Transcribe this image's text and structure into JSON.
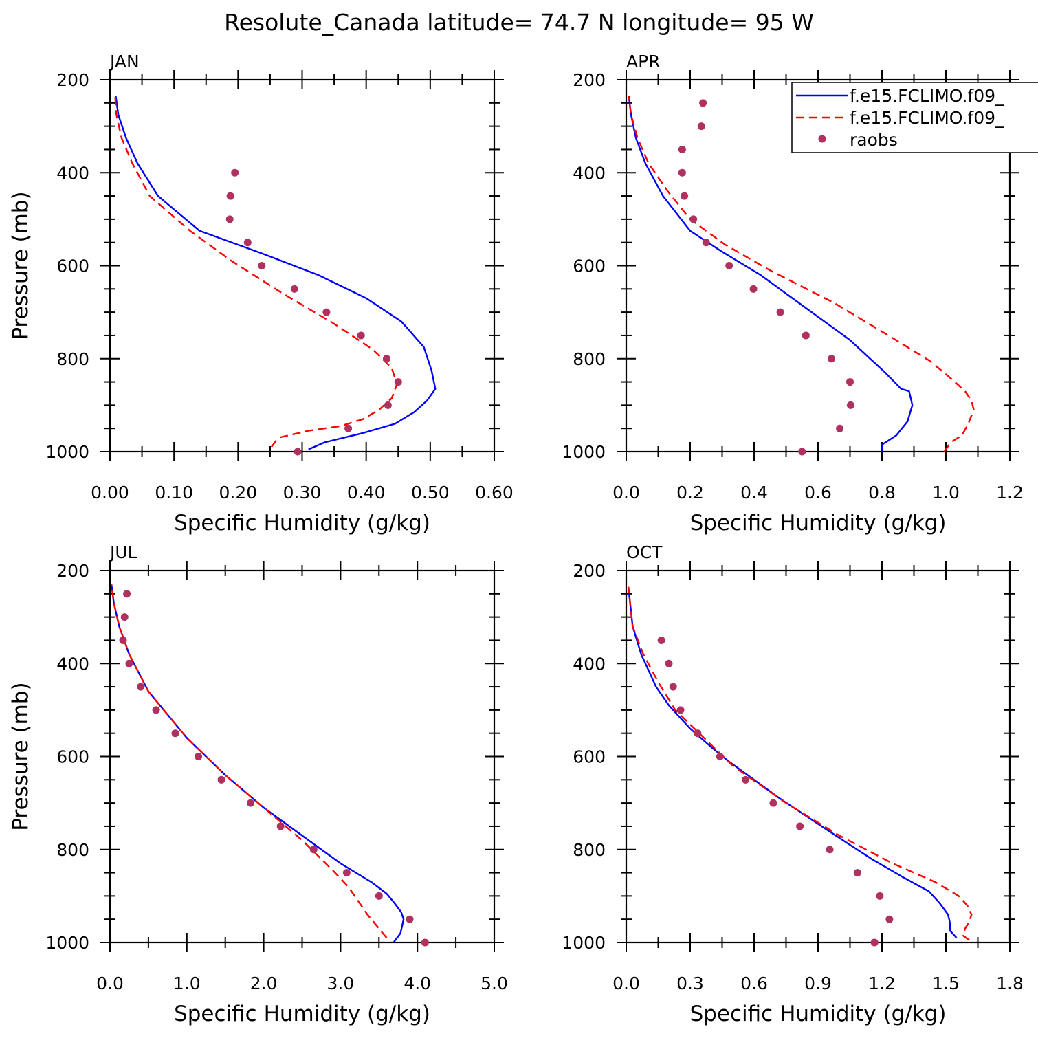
{
  "title": "Resolute_Canada  latitude= 74.7 N longitude= 95 W",
  "colors": {
    "model1": "#0000ff",
    "model2": "#ff0000",
    "raobs": "#b03060"
  },
  "legend": {
    "position": "top-right of APR panel",
    "entries": [
      {
        "label": "f.e15.FCLIMO.f09_",
        "style": "solid",
        "color": "#0000ff"
      },
      {
        "label": "f.e15.FCLIMO.f09_",
        "style": "dashed",
        "color": "#ff0000"
      },
      {
        "label": "raobs",
        "style": "marker",
        "color": "#b03060"
      }
    ]
  },
  "chart_data": [
    {
      "type": "line",
      "panel": "JAN",
      "title": "JAN",
      "xlabel": "Specific Humidity (g/kg)",
      "ylabel": "Pressure (mb)",
      "xlim": [
        0,
        0.6
      ],
      "ylim": [
        1000,
        200
      ],
      "xticks": [
        "0.00",
        "0.10",
        "0.20",
        "0.30",
        "0.40",
        "0.50",
        "0.60"
      ],
      "yticks": [
        "200",
        "400",
        "600",
        "800",
        "1000"
      ],
      "series": [
        {
          "name": "f.e15.FCLIMO.f09_ (solid)",
          "color": "#0000ff",
          "dash": "",
          "x": [
            0.31,
            0.335,
            0.395,
            0.445,
            0.475,
            0.495,
            0.508,
            0.502,
            0.49,
            0.455,
            0.4,
            0.325,
            0.24,
            0.14,
            0.075,
            0.043,
            0.025,
            0.013,
            0.009
          ],
          "y": [
            995,
            980,
            960,
            940,
            915,
            890,
            865,
            825,
            775,
            720,
            670,
            620,
            575,
            525,
            450,
            380,
            325,
            275,
            235
          ]
        },
        {
          "name": "f.e15.FCLIMO.f09_ (dashed)",
          "color": "#ff0000",
          "dash": "12,7",
          "x": [
            0.252,
            0.263,
            0.31,
            0.36,
            0.395,
            0.42,
            0.44,
            0.448,
            0.44,
            0.41,
            0.35,
            0.27,
            0.19,
            0.125,
            0.062,
            0.035,
            0.018,
            0.01,
            0.008
          ],
          "y": [
            990,
            970,
            955,
            945,
            930,
            910,
            885,
            855,
            820,
            780,
            725,
            660,
            590,
            525,
            450,
            380,
            325,
            275,
            235
          ]
        },
        {
          "name": "raobs",
          "color": "#b03060",
          "marker": true,
          "x": [
            0.293,
            0.372,
            0.434,
            0.45,
            0.432,
            0.392,
            0.338,
            0.288,
            0.237,
            0.215,
            0.187,
            0.188,
            0.195
          ],
          "y": [
            1000,
            950,
            900,
            850,
            800,
            750,
            700,
            650,
            600,
            550,
            500,
            450,
            400
          ]
        }
      ]
    },
    {
      "type": "line",
      "panel": "APR",
      "title": "APR",
      "xlabel": "Specific Humidity (g/kg)",
      "ylabel": "Pressure (mb)",
      "xlim": [
        0,
        1.2
      ],
      "ylim": [
        1000,
        200
      ],
      "xticks": [
        "0.0",
        "0.2",
        "0.4",
        "0.6",
        "0.8",
        "1.0",
        "1.2"
      ],
      "yticks": [
        "200",
        "400",
        "600",
        "800",
        "1000"
      ],
      "series": [
        {
          "name": "f.e15.FCLIMO.f09_ (solid)",
          "color": "#0000ff",
          "dash": "",
          "x": [
            0.802,
            0.8,
            0.845,
            0.88,
            0.895,
            0.885,
            0.86,
            0.81,
            0.7,
            0.56,
            0.42,
            0.3,
            0.2,
            0.115,
            0.06,
            0.03,
            0.015,
            0.008
          ],
          "y": [
            1000,
            985,
            965,
            935,
            900,
            870,
            865,
            830,
            760,
            690,
            620,
            570,
            525,
            450,
            380,
            325,
            275,
            235
          ]
        },
        {
          "name": "f.e15.FCLIMO.f09_ (dashed)",
          "color": "#ff0000",
          "dash": "12,7",
          "x": [
            0.995,
            1.015,
            1.05,
            1.07,
            1.087,
            1.08,
            1.06,
            1.02,
            0.95,
            0.82,
            0.65,
            0.45,
            0.31,
            0.2,
            0.13,
            0.07,
            0.035,
            0.015,
            0.007
          ],
          "y": [
            1000,
            980,
            965,
            940,
            910,
            890,
            870,
            845,
            805,
            750,
            680,
            610,
            555,
            500,
            440,
            380,
            325,
            275,
            235
          ]
        },
        {
          "name": "raobs",
          "color": "#b03060",
          "marker": true,
          "x": [
            0.55,
            0.668,
            0.702,
            0.7,
            0.642,
            0.562,
            0.482,
            0.398,
            0.322,
            0.25,
            0.21,
            0.182,
            0.175,
            0.175,
            0.235,
            0.24
          ],
          "y": [
            1000,
            950,
            900,
            850,
            800,
            750,
            700,
            650,
            600,
            550,
            500,
            450,
            400,
            350,
            300,
            250
          ]
        }
      ]
    },
    {
      "type": "line",
      "panel": "JUL",
      "title": "JUL",
      "xlabel": "Specific Humidity (g/kg)",
      "ylabel": "Pressure (mb)",
      "xlim": [
        0,
        5.0
      ],
      "ylim": [
        1000,
        200
      ],
      "xticks": [
        "0.0",
        "1.0",
        "2.0",
        "3.0",
        "4.0",
        "5.0"
      ],
      "yticks": [
        "200",
        "400",
        "600",
        "800",
        "1000"
      ],
      "series": [
        {
          "name": "f.e15.FCLIMO.f09_ (solid)",
          "color": "#0000ff",
          "dash": "",
          "x": [
            3.69,
            3.78,
            3.82,
            3.79,
            3.7,
            3.6,
            3.4,
            3.0,
            2.5,
            2.0,
            1.5,
            1.0,
            0.5,
            0.25,
            0.12,
            0.05,
            0.02
          ],
          "y": [
            1000,
            980,
            950,
            935,
            915,
            895,
            870,
            830,
            770,
            710,
            640,
            560,
            460,
            380,
            320,
            270,
            230
          ]
        },
        {
          "name": "f.e15.FCLIMO.f09_ (dashed)",
          "color": "#ff0000",
          "dash": "12,7",
          "x": [
            3.6,
            3.35,
            3.1,
            2.9,
            2.5,
            2.0,
            1.5,
            1.0,
            0.5,
            0.25,
            0.12,
            0.05,
            0.02
          ],
          "y": [
            990,
            940,
            880,
            845,
            780,
            710,
            640,
            560,
            460,
            380,
            320,
            270,
            230
          ]
        },
        {
          "name": "raobs",
          "color": "#b03060",
          "marker": true,
          "x": [
            4.1,
            3.9,
            3.5,
            3.08,
            2.65,
            2.22,
            1.83,
            1.45,
            1.15,
            0.85,
            0.6,
            0.4,
            0.25,
            0.17,
            0.19,
            0.22
          ],
          "y": [
            1000,
            950,
            900,
            850,
            800,
            750,
            700,
            650,
            600,
            550,
            500,
            450,
            400,
            350,
            300,
            250
          ]
        }
      ]
    },
    {
      "type": "line",
      "panel": "OCT",
      "title": "OCT",
      "xlabel": "Specific Humidity (g/kg)",
      "ylabel": "Pressure (mb)",
      "xlim": [
        0,
        1.8
      ],
      "ylim": [
        1000,
        200
      ],
      "xticks": [
        "0.0",
        "0.3",
        "0.6",
        "0.9",
        "1.2",
        "1.5",
        "1.8"
      ],
      "yticks": [
        "200",
        "400",
        "600",
        "800",
        "1000"
      ],
      "series": [
        {
          "name": "f.e15.FCLIMO.f09_ (solid)",
          "color": "#0000ff",
          "dash": "",
          "x": [
            1.55,
            1.52,
            1.52,
            1.51,
            1.47,
            1.42,
            1.3,
            1.15,
            0.95,
            0.72,
            0.48,
            0.4,
            0.3,
            0.2,
            0.14,
            0.07,
            0.03,
            0.01
          ],
          "y": [
            990,
            975,
            960,
            940,
            915,
            890,
            860,
            820,
            760,
            690,
            610,
            580,
            540,
            490,
            450,
            380,
            320,
            235
          ]
        },
        {
          "name": "f.e15.FCLIMO.f09_ (dashed)",
          "color": "#ff0000",
          "dash": "12,7",
          "x": [
            1.61,
            1.58,
            1.59,
            1.61,
            1.62,
            1.6,
            1.56,
            1.45,
            1.25,
            1.0,
            0.75,
            0.5,
            0.32,
            0.23,
            0.15,
            0.08,
            0.03,
            0.01
          ],
          "y": [
            995,
            985,
            970,
            955,
            940,
            920,
            900,
            870,
            830,
            770,
            700,
            620,
            540,
            500,
            440,
            380,
            320,
            235
          ]
        },
        {
          "name": "raobs",
          "color": "#b03060",
          "marker": true,
          "x": [
            1.165,
            1.235,
            1.19,
            1.085,
            0.955,
            0.815,
            0.69,
            0.56,
            0.44,
            0.335,
            0.255,
            0.22,
            0.2,
            0.165
          ],
          "y": [
            1000,
            950,
            900,
            850,
            800,
            750,
            700,
            650,
            600,
            550,
            500,
            450,
            400,
            350
          ]
        }
      ]
    }
  ]
}
